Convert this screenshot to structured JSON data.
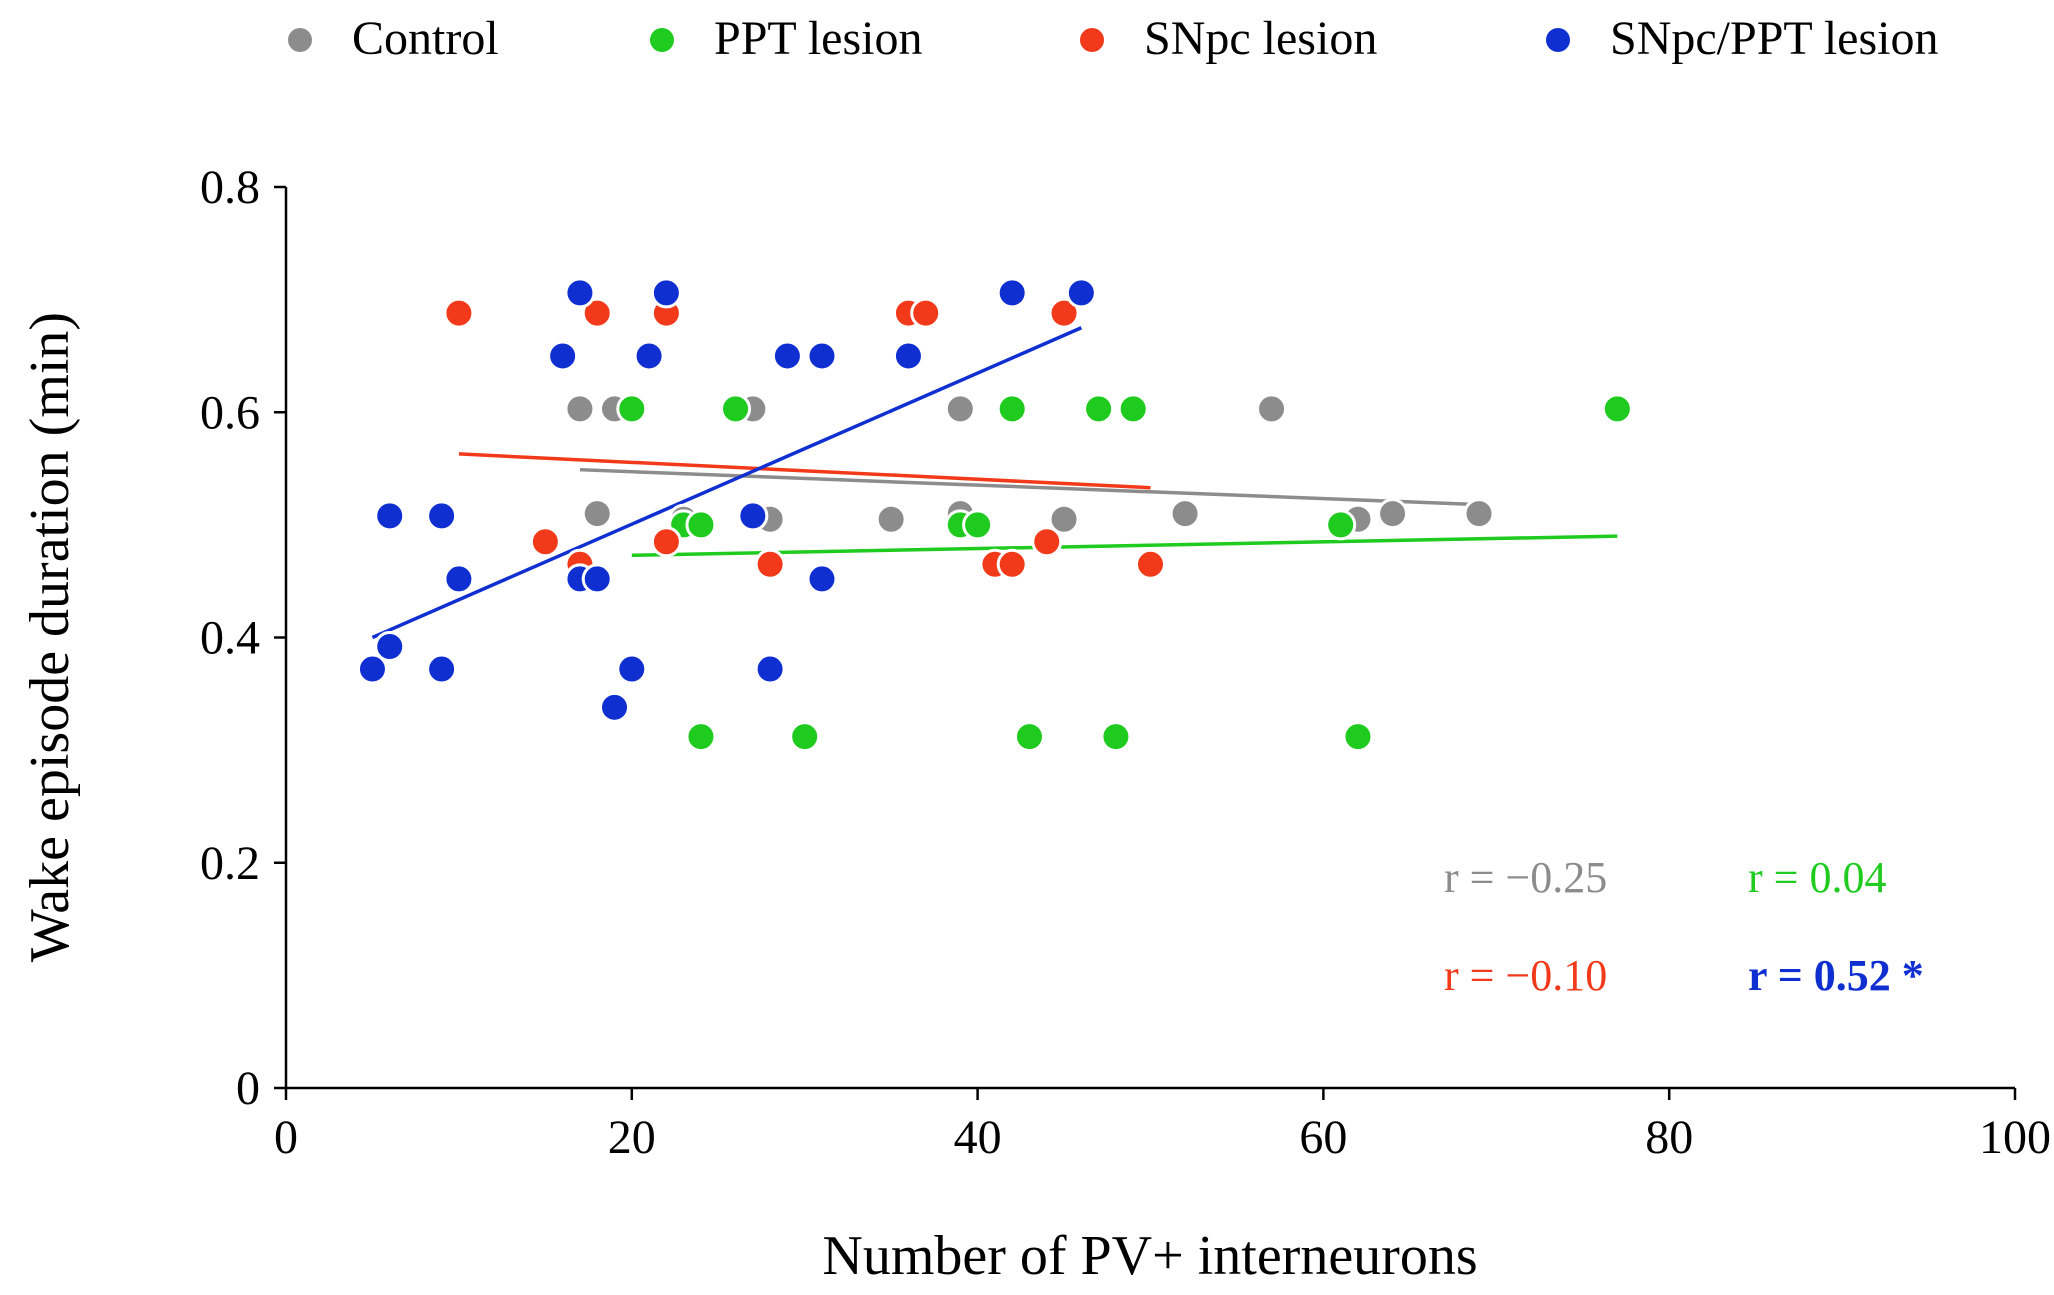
{
  "chart_data": {
    "type": "scatter",
    "title": "",
    "xlabel": "Number of PV+ interneurons",
    "ylabel": "Wake episode duration (min)",
    "xlim": [
      0,
      100
    ],
    "ylim": [
      0,
      0.8
    ],
    "xticks": [
      0,
      20,
      40,
      60,
      80,
      100
    ],
    "yticks": [
      0,
      0.2,
      0.4,
      0.6,
      0.8
    ],
    "xtick_labels": [
      "0",
      "20",
      "40",
      "60",
      "80",
      "100"
    ],
    "ytick_labels": [
      "0",
      "0.2",
      "0.4",
      "0.6",
      "0.8"
    ],
    "grid": false,
    "legend_position": "top",
    "series": [
      {
        "name": "Control",
        "color": "#8c8c8c",
        "points": [
          [
            17,
            0.603
          ],
          [
            19,
            0.603
          ],
          [
            27,
            0.603
          ],
          [
            39,
            0.603
          ],
          [
            57,
            0.603
          ],
          [
            18,
            0.51
          ],
          [
            23,
            0.505
          ],
          [
            28,
            0.505
          ],
          [
            35,
            0.505
          ],
          [
            39,
            0.51
          ],
          [
            45,
            0.505
          ],
          [
            52,
            0.51
          ],
          [
            62,
            0.505
          ],
          [
            64,
            0.51
          ],
          [
            69,
            0.51
          ]
        ],
        "trend": [
          [
            17,
            0.549
          ],
          [
            69,
            0.518
          ]
        ],
        "r_label": "r = −0.25"
      },
      {
        "name": "PPT lesion",
        "color": "#1ecb1e",
        "points": [
          [
            20,
            0.603
          ],
          [
            26,
            0.603
          ],
          [
            42,
            0.603
          ],
          [
            47,
            0.603
          ],
          [
            49,
            0.603
          ],
          [
            77,
            0.603
          ],
          [
            23,
            0.5
          ],
          [
            24,
            0.5
          ],
          [
            39,
            0.5
          ],
          [
            40,
            0.5
          ],
          [
            61,
            0.5
          ],
          [
            24,
            0.312
          ],
          [
            30,
            0.312
          ],
          [
            43,
            0.312
          ],
          [
            48,
            0.312
          ],
          [
            62,
            0.312
          ]
        ],
        "trend": [
          [
            20,
            0.473
          ],
          [
            77,
            0.49
          ]
        ],
        "r_label": "r = 0.04"
      },
      {
        "name": "SNpc lesion",
        "color": "#f23a1a",
        "points": [
          [
            10,
            0.688
          ],
          [
            18,
            0.688
          ],
          [
            22,
            0.688
          ],
          [
            36,
            0.688
          ],
          [
            37,
            0.688
          ],
          [
            45,
            0.688
          ],
          [
            15,
            0.485
          ],
          [
            22,
            0.485
          ],
          [
            44,
            0.485
          ],
          [
            17,
            0.465
          ],
          [
            28,
            0.465
          ],
          [
            41,
            0.465
          ],
          [
            42,
            0.465
          ],
          [
            50,
            0.465
          ]
        ],
        "trend": [
          [
            10,
            0.563
          ],
          [
            50,
            0.533
          ]
        ],
        "r_label": "r = −0.10"
      },
      {
        "name": "SNpc/PPT lesion",
        "color": "#0f2fd1",
        "points": [
          [
            17,
            0.706
          ],
          [
            22,
            0.706
          ],
          [
            42,
            0.706
          ],
          [
            46,
            0.706
          ],
          [
            16,
            0.65
          ],
          [
            21,
            0.65
          ],
          [
            29,
            0.65
          ],
          [
            31,
            0.65
          ],
          [
            36,
            0.65
          ],
          [
            6,
            0.508
          ],
          [
            9,
            0.508
          ],
          [
            27,
            0.508
          ],
          [
            10,
            0.452
          ],
          [
            17,
            0.452
          ],
          [
            18,
            0.452
          ],
          [
            31,
            0.452
          ],
          [
            5,
            0.372
          ],
          [
            6,
            0.392
          ],
          [
            9,
            0.372
          ],
          [
            20,
            0.372
          ],
          [
            28,
            0.372
          ],
          [
            19,
            0.338
          ]
        ],
        "trend": [
          [
            5,
            0.4
          ],
          [
            46,
            0.675
          ]
        ],
        "r_label": "r = 0.52 *"
      }
    ]
  }
}
